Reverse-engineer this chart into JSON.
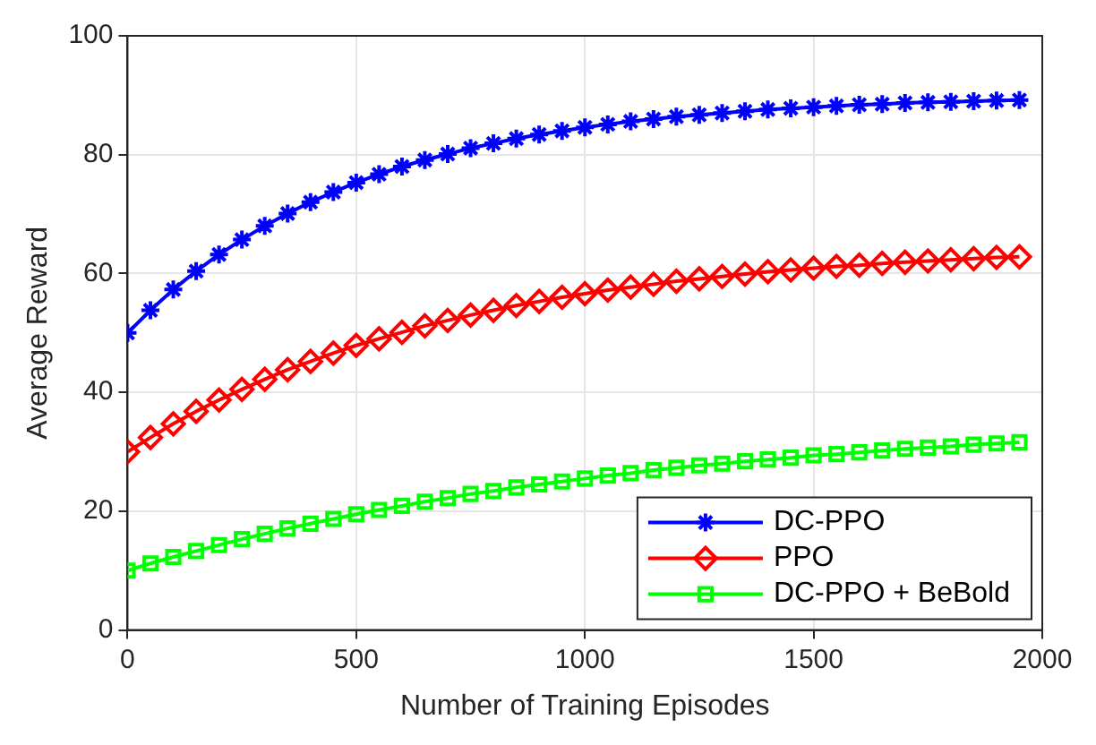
{
  "chart_data": {
    "type": "line",
    "xlabel": "Number of Training Episodes",
    "ylabel": "Average Reward",
    "x": [
      0,
      50,
      100,
      150,
      200,
      250,
      300,
      350,
      400,
      450,
      500,
      550,
      600,
      650,
      700,
      750,
      800,
      850,
      900,
      950,
      1000,
      1050,
      1100,
      1150,
      1200,
      1250,
      1300,
      1350,
      1400,
      1450,
      1500,
      1550,
      1600,
      1650,
      1700,
      1750,
      1800,
      1850,
      1900,
      1950
    ],
    "series": [
      {
        "name": "DC-PPO",
        "color": "#0000ff",
        "marker": "cross",
        "values": [
          50,
          53.8,
          57.3,
          60.4,
          63.2,
          65.7,
          68.0,
          70.1,
          72.0,
          73.7,
          75.3,
          76.7,
          78.0,
          79.1,
          80.1,
          81.1,
          81.9,
          82.7,
          83.4,
          84.0,
          84.6,
          85.1,
          85.6,
          86.0,
          86.4,
          86.7,
          87.0,
          87.3,
          87.6,
          87.8,
          88.0,
          88.2,
          88.4,
          88.5,
          88.7,
          88.8,
          88.9,
          89.0,
          89.1,
          89.2
        ]
      },
      {
        "name": "PPO",
        "color": "#ff0000",
        "marker": "diamond",
        "values": [
          30,
          32.4,
          34.7,
          36.8,
          38.7,
          40.5,
          42.2,
          43.8,
          45.2,
          46.6,
          47.9,
          49.0,
          50.1,
          51.2,
          52.1,
          53.0,
          53.8,
          54.6,
          55.3,
          56.0,
          56.6,
          57.2,
          57.7,
          58.2,
          58.7,
          59.1,
          59.5,
          59.9,
          60.3,
          60.6,
          60.9,
          61.2,
          61.4,
          61.7,
          61.9,
          62.1,
          62.3,
          62.5,
          62.7,
          62.8
        ]
      },
      {
        "name": "DC-PPO + BeBold",
        "color": "#00ff00",
        "marker": "square",
        "values": [
          10,
          11.2,
          12.3,
          13.3,
          14.3,
          15.3,
          16.2,
          17.1,
          17.9,
          18.7,
          19.5,
          20.2,
          20.9,
          21.6,
          22.2,
          22.9,
          23.4,
          24.0,
          24.5,
          25.0,
          25.5,
          26.0,
          26.4,
          26.9,
          27.3,
          27.7,
          28.0,
          28.4,
          28.7,
          29.0,
          29.4,
          29.6,
          29.9,
          30.2,
          30.5,
          30.7,
          30.9,
          31.2,
          31.4,
          31.6
        ]
      }
    ],
    "xlim": [
      0,
      2000
    ],
    "xticks": [
      0,
      500,
      1000,
      1500,
      2000
    ],
    "ylim": [
      0,
      100
    ],
    "yticks": [
      0,
      20,
      40,
      60,
      80,
      100
    ],
    "grid": true,
    "legend": "bottom right",
    "line_style": "solid"
  }
}
